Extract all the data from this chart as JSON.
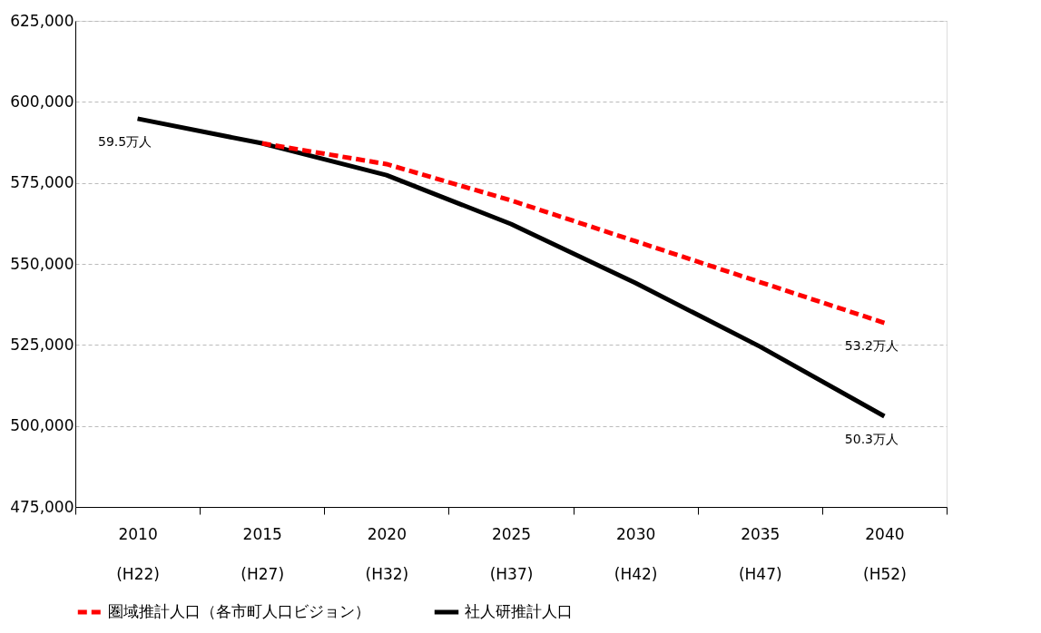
{
  "chart_data": {
    "type": "line",
    "categories": [
      "2010\n(H22)",
      "2015\n(H27)",
      "2020\n(H32)",
      "2025\n(H37)",
      "2030\n(H42)",
      "2035\n(H47)",
      "2040\n(H52)"
    ],
    "series": [
      {
        "name": "圏域推計人口（各市町人口ビジョン）",
        "color": "#ff0000",
        "line_style": "dashed",
        "values": [
          null,
          587200,
          580800,
          569600,
          557000,
          544400,
          531800
        ]
      },
      {
        "name": "社人研推計人口",
        "color": "#000000",
        "line_style": "solid",
        "values": [
          594800,
          587200,
          577400,
          562300,
          544100,
          524500,
          503000
        ]
      }
    ],
    "ylim": [
      475000,
      625000
    ],
    "yticks": [
      {
        "value": 475000,
        "label": "475,000"
      },
      {
        "value": 500000,
        "label": "500,000"
      },
      {
        "value": 525000,
        "label": "525,000"
      },
      {
        "value": 550000,
        "label": "550,000"
      },
      {
        "value": 575000,
        "label": "575,000"
      },
      {
        "value": 600000,
        "label": "600,000"
      },
      {
        "value": 625000,
        "label": "625,000"
      }
    ],
    "grid": "y",
    "legend": "bottom",
    "marker": "none",
    "annotations": [
      {
        "text": "59.5万人",
        "x": "2010\n(H22)",
        "y": 594800
      },
      {
        "text": "53.2万人",
        "x": "2040\n(H52)",
        "y": 531800
      },
      {
        "text": "50.3万人",
        "x": "2040\n(H52)",
        "y": 503000
      }
    ]
  }
}
